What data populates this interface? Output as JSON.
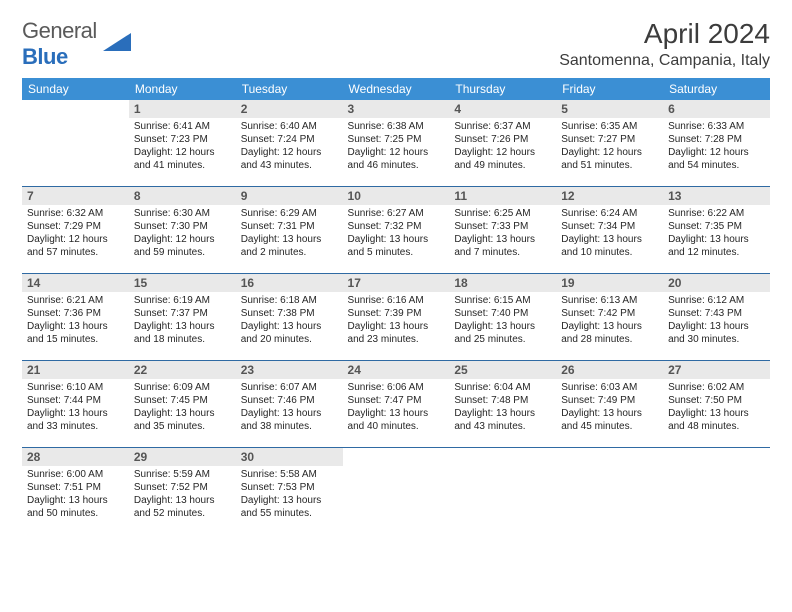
{
  "brand": {
    "part1": "General",
    "part2": "Blue"
  },
  "title": "April 2024",
  "location": "Santomenna, Campania, Italy",
  "weekday_header_bg": "#3b8fd4",
  "weekday_header_fg": "#ffffff",
  "daynum_bg": "#e9e9e9",
  "row_divider_color": "#2f6aa3",
  "weekdays": [
    "Sunday",
    "Monday",
    "Tuesday",
    "Wednesday",
    "Thursday",
    "Friday",
    "Saturday"
  ],
  "weeks": [
    [
      null,
      {
        "n": "1",
        "sr": "6:41 AM",
        "ss": "7:23 PM",
        "dl": "12 hours and 41 minutes."
      },
      {
        "n": "2",
        "sr": "6:40 AM",
        "ss": "7:24 PM",
        "dl": "12 hours and 43 minutes."
      },
      {
        "n": "3",
        "sr": "6:38 AM",
        "ss": "7:25 PM",
        "dl": "12 hours and 46 minutes."
      },
      {
        "n": "4",
        "sr": "6:37 AM",
        "ss": "7:26 PM",
        "dl": "12 hours and 49 minutes."
      },
      {
        "n": "5",
        "sr": "6:35 AM",
        "ss": "7:27 PM",
        "dl": "12 hours and 51 minutes."
      },
      {
        "n": "6",
        "sr": "6:33 AM",
        "ss": "7:28 PM",
        "dl": "12 hours and 54 minutes."
      }
    ],
    [
      {
        "n": "7",
        "sr": "6:32 AM",
        "ss": "7:29 PM",
        "dl": "12 hours and 57 minutes."
      },
      {
        "n": "8",
        "sr": "6:30 AM",
        "ss": "7:30 PM",
        "dl": "12 hours and 59 minutes."
      },
      {
        "n": "9",
        "sr": "6:29 AM",
        "ss": "7:31 PM",
        "dl": "13 hours and 2 minutes."
      },
      {
        "n": "10",
        "sr": "6:27 AM",
        "ss": "7:32 PM",
        "dl": "13 hours and 5 minutes."
      },
      {
        "n": "11",
        "sr": "6:25 AM",
        "ss": "7:33 PM",
        "dl": "13 hours and 7 minutes."
      },
      {
        "n": "12",
        "sr": "6:24 AM",
        "ss": "7:34 PM",
        "dl": "13 hours and 10 minutes."
      },
      {
        "n": "13",
        "sr": "6:22 AM",
        "ss": "7:35 PM",
        "dl": "13 hours and 12 minutes."
      }
    ],
    [
      {
        "n": "14",
        "sr": "6:21 AM",
        "ss": "7:36 PM",
        "dl": "13 hours and 15 minutes."
      },
      {
        "n": "15",
        "sr": "6:19 AM",
        "ss": "7:37 PM",
        "dl": "13 hours and 18 minutes."
      },
      {
        "n": "16",
        "sr": "6:18 AM",
        "ss": "7:38 PM",
        "dl": "13 hours and 20 minutes."
      },
      {
        "n": "17",
        "sr": "6:16 AM",
        "ss": "7:39 PM",
        "dl": "13 hours and 23 minutes."
      },
      {
        "n": "18",
        "sr": "6:15 AM",
        "ss": "7:40 PM",
        "dl": "13 hours and 25 minutes."
      },
      {
        "n": "19",
        "sr": "6:13 AM",
        "ss": "7:42 PM",
        "dl": "13 hours and 28 minutes."
      },
      {
        "n": "20",
        "sr": "6:12 AM",
        "ss": "7:43 PM",
        "dl": "13 hours and 30 minutes."
      }
    ],
    [
      {
        "n": "21",
        "sr": "6:10 AM",
        "ss": "7:44 PM",
        "dl": "13 hours and 33 minutes."
      },
      {
        "n": "22",
        "sr": "6:09 AM",
        "ss": "7:45 PM",
        "dl": "13 hours and 35 minutes."
      },
      {
        "n": "23",
        "sr": "6:07 AM",
        "ss": "7:46 PM",
        "dl": "13 hours and 38 minutes."
      },
      {
        "n": "24",
        "sr": "6:06 AM",
        "ss": "7:47 PM",
        "dl": "13 hours and 40 minutes."
      },
      {
        "n": "25",
        "sr": "6:04 AM",
        "ss": "7:48 PM",
        "dl": "13 hours and 43 minutes."
      },
      {
        "n": "26",
        "sr": "6:03 AM",
        "ss": "7:49 PM",
        "dl": "13 hours and 45 minutes."
      },
      {
        "n": "27",
        "sr": "6:02 AM",
        "ss": "7:50 PM",
        "dl": "13 hours and 48 minutes."
      }
    ],
    [
      {
        "n": "28",
        "sr": "6:00 AM",
        "ss": "7:51 PM",
        "dl": "13 hours and 50 minutes."
      },
      {
        "n": "29",
        "sr": "5:59 AM",
        "ss": "7:52 PM",
        "dl": "13 hours and 52 minutes."
      },
      {
        "n": "30",
        "sr": "5:58 AM",
        "ss": "7:53 PM",
        "dl": "13 hours and 55 minutes."
      },
      null,
      null,
      null,
      null
    ]
  ],
  "labels": {
    "sunrise": "Sunrise:",
    "sunset": "Sunset:",
    "daylight": "Daylight:"
  }
}
